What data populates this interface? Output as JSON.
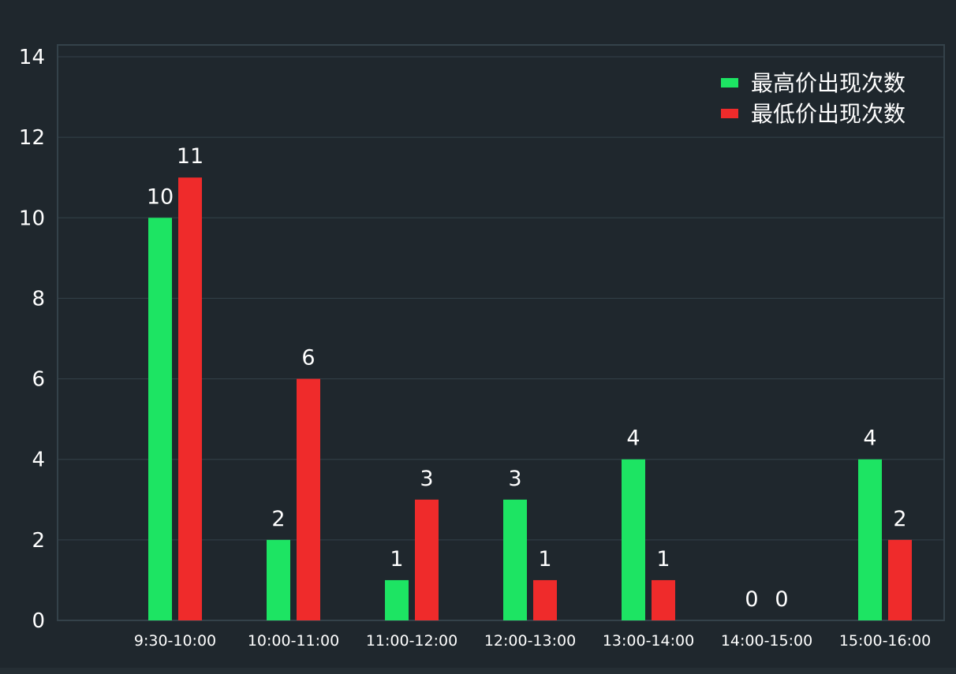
{
  "chart_data": {
    "type": "bar",
    "categories": [
      "9:30-10:00",
      "10:00-11:00",
      "11:00-12:00",
      "12:00-13:00",
      "13:00-14:00",
      "14:00-15:00",
      "15:00-16:00"
    ],
    "series": [
      {
        "name": "最高价出现次数",
        "values": [
          10,
          2,
          1,
          3,
          4,
          0,
          4
        ],
        "color": "#1de463"
      },
      {
        "name": "最低价出现次数",
        "values": [
          11,
          6,
          3,
          1,
          1,
          0,
          2
        ],
        "color": "#ef2b2b"
      }
    ],
    "ylim": [
      0,
      14
    ],
    "yticks": [
      0,
      2,
      4,
      6,
      8,
      10,
      12,
      14
    ],
    "grid": true,
    "legend": "top-right",
    "data_labels": true,
    "colors": {
      "background": "#1f272d",
      "grid": "#34424a",
      "text": "#ffffff"
    }
  }
}
